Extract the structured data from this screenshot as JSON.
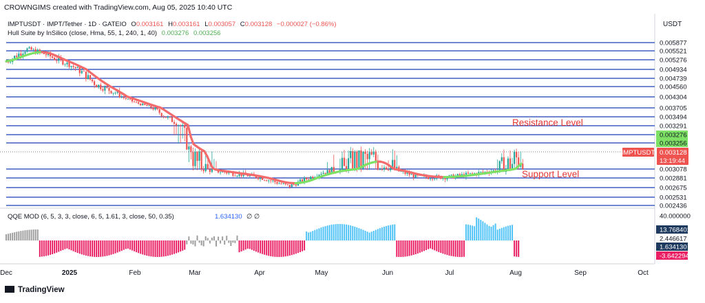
{
  "header": {
    "watermark": "CROWNGIMS created with TradingView.com, Aug 05, 2025 10:40 UTC",
    "symbol": "IMPTUSDT · IMPT/Tether · 1D · GATEIO",
    "o_label": "O",
    "o_value": "0.003161",
    "h_label": "H",
    "h_value": "0.003161",
    "l_label": "L",
    "l_value": "0.003057",
    "c_label": "C",
    "c_value": "0.003128",
    "change": "−0.000027 (−0.86%)",
    "indicator": "Hull Suite by InSilico (close, Hma, 55, 1, 240, 1, 40)",
    "hull_v1": "0.003276",
    "hull_v2": "0.003256"
  },
  "currency": "USDT",
  "ticker_label": "IMPTUSDT",
  "price_tag": "0.003128",
  "countdown": "13:19:44",
  "annotations": {
    "resistance": "Resistance Level",
    "support": "Support Level"
  },
  "qqe": {
    "title": "QQE MOD (6, 5, 3, 3, close, 6, 5, 1.61, 3, close, 50, 0.35)",
    "value": "1.634130",
    "symbols": "∅ ∅",
    "axis": [
      "40.000000",
      "13.768401",
      "2.446617",
      "1.634130",
      "-3.642294"
    ]
  },
  "logo": "TradingView",
  "colors": {
    "up": "#26a69a",
    "down": "#ef5350",
    "hull_up": "#7ee065",
    "hull_down": "#f46b6b",
    "level_line": "#1a3fb8",
    "qqe_up": "#4fc3f7",
    "qqe_neutral": "#9e9e9e",
    "qqe_down": "#e91e63"
  },
  "chart_data": [
    {
      "type": "candlestick",
      "title": "IMPTUSDT · IMPT/Tether · 1D · GATEIO",
      "x_labels": [
        "Dec",
        "2025",
        "Feb",
        "Mar",
        "Apr",
        "May",
        "Jun",
        "Jul",
        "Aug",
        "Sep",
        "Oct"
      ],
      "y_axis_labels": [
        "0.005877",
        "0.005521",
        "0.005276",
        "0.004934",
        "0.004739",
        "0.004560",
        "0.004304",
        "0.003705",
        "0.003494",
        "0.003291",
        "0.003276",
        "0.003256",
        "0.003128",
        "0.003078",
        "0.002881",
        "0.002675",
        "0.002531",
        "0.002436"
      ],
      "ylim": [
        0.00242,
        0.00595
      ],
      "horizontal_levels": [
        0.005877,
        0.005521,
        0.005276,
        0.004934,
        0.004739,
        0.00456,
        0.004304,
        0.003705,
        0.003494,
        0.003291,
        0.003276,
        0.003256,
        0.003128,
        0.003078,
        0.002881,
        0.002675,
        0.002531,
        0.002436
      ],
      "price_path": [
        {
          "x": "Dec",
          "y": 0.0052
        },
        {
          "x": "mid-Dec",
          "y": 0.0056
        },
        {
          "x": "late-Dec",
          "y": 0.0054
        },
        {
          "x": "2025",
          "y": 0.0051
        },
        {
          "x": "mid-Jan",
          "y": 0.0046
        },
        {
          "x": "late-Jan",
          "y": 0.0044
        },
        {
          "x": "Feb",
          "y": 0.004
        },
        {
          "x": "mid-Feb",
          "y": 0.0035
        },
        {
          "x": "Mar",
          "y": 0.0031
        },
        {
          "x": "mid-Mar",
          "y": 0.003
        },
        {
          "x": "Apr",
          "y": 0.0029
        },
        {
          "x": "mid-Apr",
          "y": 0.0027
        },
        {
          "x": "May",
          "y": 0.003
        },
        {
          "x": "mid-May",
          "y": 0.0031
        },
        {
          "x": "Jun",
          "y": 0.0031
        },
        {
          "x": "mid-Jun",
          "y": 0.0029
        },
        {
          "x": "Jul",
          "y": 0.0029
        },
        {
          "x": "mid-Jul",
          "y": 0.003
        },
        {
          "x": "Aug",
          "y": 0.003128
        }
      ],
      "hull_suite": {
        "last_values": [
          0.003276,
          0.003256
        ]
      },
      "series": [
        {
          "name": "IMPTUSDT",
          "values": [
            0.003128
          ]
        }
      ],
      "annotations": [
        "Resistance Level",
        "Support Level"
      ]
    },
    {
      "type": "histogram",
      "title": "QQE MOD (6, 5, 3, 3, close, 6, 5, 1.61, 3, close, 50, 0.35)",
      "y_axis_labels": [
        "40.000000",
        "13.768401",
        "2.446617",
        "1.634130",
        "-3.642294"
      ],
      "series": [
        {
          "name": "QQE MOD",
          "values": [
            1.63413
          ]
        }
      ],
      "approx_regime": [
        {
          "x": "Dec",
          "sign": "neutral"
        },
        {
          "x": "late-Dec",
          "sign": "negative"
        },
        {
          "x": "Jan",
          "sign": "negative"
        },
        {
          "x": "Feb",
          "sign": "negative"
        },
        {
          "x": "Mar",
          "sign": "mixed"
        },
        {
          "x": "Apr",
          "sign": "negative"
        },
        {
          "x": "May",
          "sign": "positive"
        },
        {
          "x": "Jun",
          "sign": "negative"
        },
        {
          "x": "Jul",
          "sign": "positive"
        },
        {
          "x": "Aug",
          "sign": "negative"
        }
      ]
    }
  ]
}
